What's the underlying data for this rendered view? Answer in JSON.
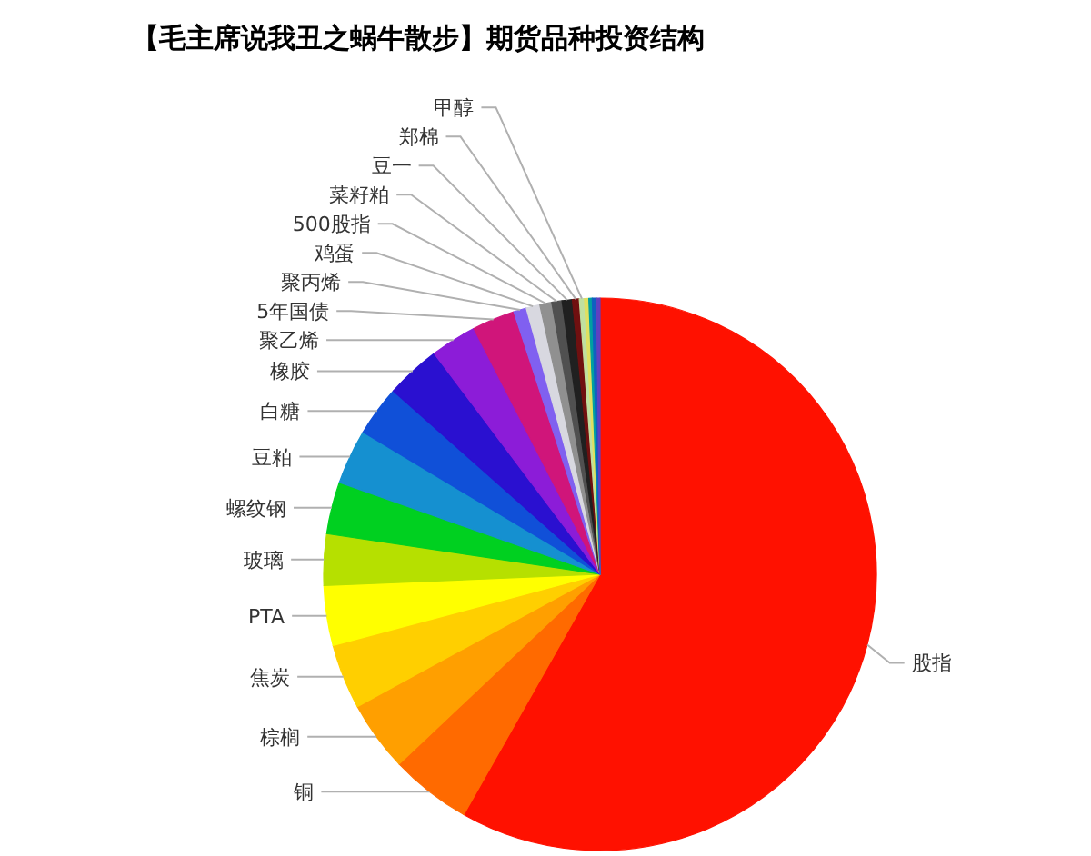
{
  "chart_data": {
    "type": "pie",
    "title": "【毛主席说我丑之蜗牛散步】期货品种投资结构",
    "categories": [
      "股指",
      "铜",
      "棕榈",
      "焦炭",
      "PTA",
      "玻璃",
      "螺纹钢",
      "豆粕",
      "白糖",
      "橡胶",
      "聚乙烯",
      "5年国债",
      "聚丙烯",
      "鸡蛋",
      "500股指",
      "菜籽粕",
      "豆一",
      "郑棉",
      "甲醇",
      null,
      null,
      null,
      null
    ],
    "values": [
      58.2,
      4.75,
      4.1,
      3.8,
      3.5,
      3.0,
      3.05,
      3.2,
      2.95,
      3.2,
      2.7,
      2.5,
      0.75,
      0.8,
      0.7,
      0.6,
      0.6,
      0.4,
      0.3,
      0.25,
      0.2,
      0.25,
      0.2
    ],
    "colors": [
      "#ff1100",
      "#ff6a00",
      "#ff9f00",
      "#ffcf00",
      "#ffff00",
      "#b6e000",
      "#00d020",
      "#1590d0",
      "#1050d8",
      "#2a10d0",
      "#8c1cd8",
      "#d0157a",
      "#8060f0",
      "#d8d8e0",
      "#909090",
      "#505050",
      "#202020",
      "#701010",
      "#c0e0a0",
      "#e0e060",
      "#00a0a0",
      "#1060c0",
      "#6040c0"
    ]
  }
}
